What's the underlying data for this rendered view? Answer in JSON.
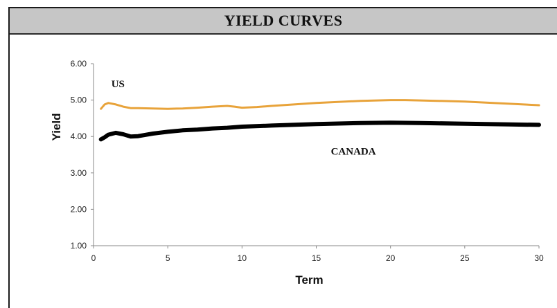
{
  "title": "YIELD CURVES",
  "chart_data": {
    "type": "line",
    "xlabel": "Term",
    "ylabel": "Yield",
    "xlim": [
      0,
      30
    ],
    "ylim": [
      1.0,
      6.0
    ],
    "x_ticks": [
      "0",
      "5",
      "10",
      "15",
      "20",
      "25",
      "30"
    ],
    "y_ticks": [
      "1.00",
      "2.00",
      "3.00",
      "4.00",
      "5.00",
      "6.00"
    ],
    "grid": false,
    "series": [
      {
        "name": "US",
        "color": "#E8A33A",
        "x": [
          0.5,
          0.75,
          1,
          1.5,
          2,
          2.5,
          3,
          4,
          5,
          6,
          7,
          8,
          9,
          9.5,
          10,
          11,
          12,
          15,
          18,
          20,
          21,
          22,
          25,
          28,
          30
        ],
        "y": [
          4.76,
          4.88,
          4.92,
          4.88,
          4.82,
          4.78,
          4.78,
          4.77,
          4.76,
          4.77,
          4.79,
          4.82,
          4.84,
          4.82,
          4.79,
          4.81,
          4.84,
          4.92,
          4.98,
          5.0,
          5.0,
          4.99,
          4.96,
          4.9,
          4.86
        ]
      },
      {
        "name": "CANADA",
        "color": "#000000",
        "x": [
          0.5,
          0.75,
          1,
          1.5,
          2,
          2.5,
          3,
          4,
          5,
          6,
          7,
          8,
          9,
          10,
          12,
          15,
          18,
          20,
          22,
          25,
          28,
          30
        ],
        "y": [
          3.92,
          3.98,
          4.05,
          4.1,
          4.06,
          4.0,
          4.01,
          4.08,
          4.13,
          4.17,
          4.19,
          4.22,
          4.24,
          4.27,
          4.3,
          4.34,
          4.37,
          4.38,
          4.37,
          4.35,
          4.33,
          4.32
        ]
      }
    ]
  }
}
